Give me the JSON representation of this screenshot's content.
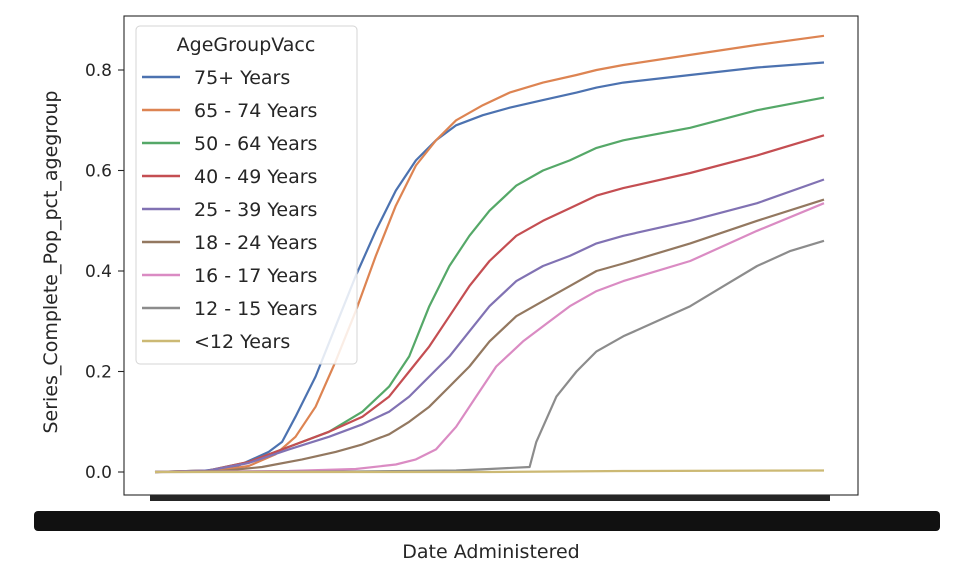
{
  "chart_data": {
    "type": "line",
    "xlabel": "Date Administered",
    "ylabel": "Series_Complete_Pop_pct_agegroup",
    "ylim": [
      -0.05,
      0.9
    ],
    "y_ticks": [
      "0.0",
      "0.2",
      "0.4",
      "0.6",
      "0.8"
    ],
    "x_ticks_note": "x tick labels (dates) are illegible — rendered as an overlapping black band",
    "x_domain": [
      0,
      1
    ],
    "legend": {
      "title": "AgeGroupVacc",
      "placement": "upper-left"
    },
    "grid": false,
    "series": [
      {
        "name": "75+ Years",
        "color": "#4c72b0",
        "points": [
          [
            0,
            0
          ],
          [
            0.07,
            0.002
          ],
          [
            0.12,
            0.01
          ],
          [
            0.17,
            0.04
          ],
          [
            0.19,
            0.06
          ],
          [
            0.21,
            0.11
          ],
          [
            0.24,
            0.19
          ],
          [
            0.27,
            0.29
          ],
          [
            0.3,
            0.39
          ],
          [
            0.33,
            0.48
          ],
          [
            0.36,
            0.56
          ],
          [
            0.39,
            0.62
          ],
          [
            0.42,
            0.66
          ],
          [
            0.45,
            0.69
          ],
          [
            0.49,
            0.71
          ],
          [
            0.53,
            0.725
          ],
          [
            0.58,
            0.74
          ],
          [
            0.63,
            0.755
          ],
          [
            0.66,
            0.765
          ],
          [
            0.7,
            0.775
          ],
          [
            0.8,
            0.79
          ],
          [
            0.9,
            0.805
          ],
          [
            1,
            0.815
          ]
        ]
      },
      {
        "name": "65 - 74 Years",
        "color": "#dd8452",
        "points": [
          [
            0,
            0
          ],
          [
            0.09,
            0.002
          ],
          [
            0.14,
            0.012
          ],
          [
            0.18,
            0.035
          ],
          [
            0.21,
            0.07
          ],
          [
            0.24,
            0.13
          ],
          [
            0.27,
            0.22
          ],
          [
            0.3,
            0.32
          ],
          [
            0.33,
            0.43
          ],
          [
            0.36,
            0.53
          ],
          [
            0.39,
            0.61
          ],
          [
            0.42,
            0.66
          ],
          [
            0.45,
            0.7
          ],
          [
            0.49,
            0.73
          ],
          [
            0.53,
            0.755
          ],
          [
            0.58,
            0.775
          ],
          [
            0.63,
            0.79
          ],
          [
            0.66,
            0.8
          ],
          [
            0.7,
            0.81
          ],
          [
            0.8,
            0.83
          ],
          [
            0.9,
            0.85
          ],
          [
            1,
            0.868
          ]
        ]
      },
      {
        "name": "50 - 64 Years",
        "color": "#55a868",
        "points": [
          [
            0,
            0
          ],
          [
            0.08,
            0.003
          ],
          [
            0.14,
            0.02
          ],
          [
            0.2,
            0.05
          ],
          [
            0.26,
            0.08
          ],
          [
            0.31,
            0.12
          ],
          [
            0.35,
            0.17
          ],
          [
            0.38,
            0.23
          ],
          [
            0.41,
            0.33
          ],
          [
            0.44,
            0.41
          ],
          [
            0.47,
            0.47
          ],
          [
            0.5,
            0.52
          ],
          [
            0.54,
            0.57
          ],
          [
            0.58,
            0.6
          ],
          [
            0.62,
            0.62
          ],
          [
            0.66,
            0.645
          ],
          [
            0.7,
            0.66
          ],
          [
            0.8,
            0.685
          ],
          [
            0.9,
            0.72
          ],
          [
            1,
            0.745
          ]
        ]
      },
      {
        "name": "40 - 49 Years",
        "color": "#c44e52",
        "points": [
          [
            0,
            0
          ],
          [
            0.08,
            0.003
          ],
          [
            0.14,
            0.02
          ],
          [
            0.2,
            0.05
          ],
          [
            0.26,
            0.08
          ],
          [
            0.31,
            0.11
          ],
          [
            0.35,
            0.15
          ],
          [
            0.38,
            0.2
          ],
          [
            0.41,
            0.25
          ],
          [
            0.44,
            0.31
          ],
          [
            0.47,
            0.37
          ],
          [
            0.5,
            0.42
          ],
          [
            0.54,
            0.47
          ],
          [
            0.58,
            0.5
          ],
          [
            0.62,
            0.525
          ],
          [
            0.66,
            0.55
          ],
          [
            0.7,
            0.565
          ],
          [
            0.8,
            0.595
          ],
          [
            0.9,
            0.63
          ],
          [
            1,
            0.67
          ]
        ]
      },
      {
        "name": "25 - 39 Years",
        "color": "#8172b3",
        "points": [
          [
            0,
            0
          ],
          [
            0.08,
            0.003
          ],
          [
            0.14,
            0.018
          ],
          [
            0.2,
            0.045
          ],
          [
            0.26,
            0.07
          ],
          [
            0.31,
            0.095
          ],
          [
            0.35,
            0.12
          ],
          [
            0.38,
            0.15
          ],
          [
            0.41,
            0.19
          ],
          [
            0.44,
            0.23
          ],
          [
            0.47,
            0.28
          ],
          [
            0.5,
            0.33
          ],
          [
            0.54,
            0.38
          ],
          [
            0.58,
            0.41
          ],
          [
            0.62,
            0.43
          ],
          [
            0.66,
            0.455
          ],
          [
            0.7,
            0.47
          ],
          [
            0.8,
            0.5
          ],
          [
            0.9,
            0.535
          ],
          [
            1,
            0.582
          ]
        ]
      },
      {
        "name": "18 - 24 Years",
        "color": "#937860",
        "points": [
          [
            0,
            0
          ],
          [
            0.1,
            0.002
          ],
          [
            0.16,
            0.01
          ],
          [
            0.22,
            0.025
          ],
          [
            0.27,
            0.04
          ],
          [
            0.31,
            0.055
          ],
          [
            0.35,
            0.075
          ],
          [
            0.38,
            0.1
          ],
          [
            0.41,
            0.13
          ],
          [
            0.44,
            0.17
          ],
          [
            0.47,
            0.21
          ],
          [
            0.5,
            0.26
          ],
          [
            0.54,
            0.31
          ],
          [
            0.58,
            0.34
          ],
          [
            0.62,
            0.37
          ],
          [
            0.66,
            0.4
          ],
          [
            0.7,
            0.415
          ],
          [
            0.8,
            0.455
          ],
          [
            0.9,
            0.5
          ],
          [
            1,
            0.542
          ]
        ]
      },
      {
        "name": "16 - 17 Years",
        "color": "#da8bc3",
        "points": [
          [
            0,
            0
          ],
          [
            0.2,
            0.002
          ],
          [
            0.3,
            0.006
          ],
          [
            0.36,
            0.015
          ],
          [
            0.39,
            0.025
          ],
          [
            0.42,
            0.045
          ],
          [
            0.45,
            0.09
          ],
          [
            0.48,
            0.15
          ],
          [
            0.51,
            0.21
          ],
          [
            0.55,
            0.26
          ],
          [
            0.59,
            0.3
          ],
          [
            0.62,
            0.33
          ],
          [
            0.66,
            0.36
          ],
          [
            0.7,
            0.38
          ],
          [
            0.8,
            0.42
          ],
          [
            0.9,
            0.48
          ],
          [
            1,
            0.535
          ]
        ]
      },
      {
        "name": "12 - 15 Years",
        "color": "#8c8c8c",
        "points": [
          [
            0,
            0
          ],
          [
            0.3,
            0.001
          ],
          [
            0.45,
            0.003
          ],
          [
            0.5,
            0.006
          ],
          [
            0.56,
            0.01
          ],
          [
            0.57,
            0.06
          ],
          [
            0.6,
            0.15
          ],
          [
            0.63,
            0.2
          ],
          [
            0.66,
            0.24
          ],
          [
            0.7,
            0.27
          ],
          [
            0.75,
            0.3
          ],
          [
            0.8,
            0.33
          ],
          [
            0.85,
            0.37
          ],
          [
            0.9,
            0.41
          ],
          [
            0.95,
            0.44
          ],
          [
            1,
            0.46
          ]
        ]
      },
      {
        "name": "<12 Years",
        "color": "#ccb974",
        "points": [
          [
            0,
            0
          ],
          [
            0.5,
            0
          ],
          [
            0.6,
            0.001
          ],
          [
            0.7,
            0.002
          ],
          [
            1,
            0.003
          ]
        ]
      }
    ]
  }
}
